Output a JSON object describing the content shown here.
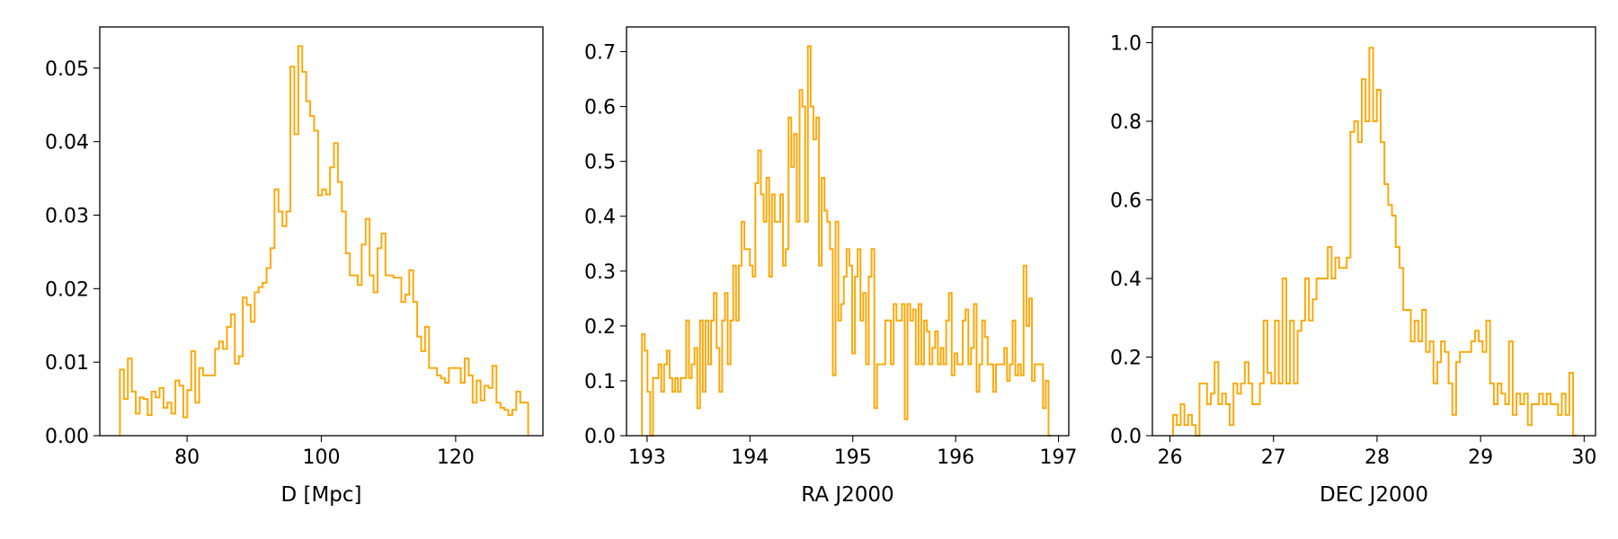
{
  "chart_data": [
    {
      "type": "histogram",
      "style": "step",
      "color": "#ffa500",
      "xlabel": "D [Mpc]",
      "ylabel": "",
      "xlim": [
        67.0,
        133.0
      ],
      "ylim": [
        0.0,
        0.0556
      ],
      "xticks": [
        80,
        100,
        120
      ],
      "xtick_labels": [
        "80",
        "100",
        "120"
      ],
      "yticks": [
        0.0,
        0.01,
        0.02,
        0.03,
        0.04,
        0.05
      ],
      "ytick_labels": [
        "0.00",
        "0.01",
        "0.02",
        "0.03",
        "0.04",
        "0.05"
      ],
      "bin_range": [
        70.0,
        130.8
      ],
      "values": [
        0.009,
        0.005,
        0.0105,
        0.006,
        0.003,
        0.0052,
        0.005,
        0.0028,
        0.006,
        0.0052,
        0.0065,
        0.0038,
        0.0045,
        0.003,
        0.0075,
        0.0068,
        0.0025,
        0.0062,
        0.0115,
        0.0045,
        0.0092,
        0.0082,
        0.0082,
        0.0082,
        0.0118,
        0.0128,
        0.0118,
        0.0148,
        0.0165,
        0.0098,
        0.0108,
        0.0188,
        0.0178,
        0.0155,
        0.0195,
        0.0202,
        0.0208,
        0.0228,
        0.0255,
        0.0335,
        0.0305,
        0.0285,
        0.0305,
        0.0502,
        0.041,
        0.053,
        0.0495,
        0.0455,
        0.0435,
        0.0415,
        0.0327,
        0.0335,
        0.0328,
        0.0365,
        0.0398,
        0.0345,
        0.0305,
        0.0248,
        0.0218,
        0.0218,
        0.0205,
        0.026,
        0.0295,
        0.0218,
        0.0195,
        0.0255,
        0.0275,
        0.0218,
        0.0218,
        0.0215,
        0.0215,
        0.0182,
        0.0192,
        0.0225,
        0.0182,
        0.0135,
        0.0115,
        0.0148,
        0.0092,
        0.0092,
        0.0082,
        0.0078,
        0.0072,
        0.0092,
        0.0092,
        0.0092,
        0.0072,
        0.0105,
        0.0082,
        0.0045,
        0.0075,
        0.0048,
        0.0068,
        0.0065,
        0.0095,
        0.0045,
        0.0038,
        0.0035,
        0.0028,
        0.0035,
        0.006,
        0.0045,
        0.0045
      ]
    },
    {
      "type": "histogram",
      "style": "step",
      "color": "#ffa500",
      "xlabel": "RA J2000",
      "ylabel": "",
      "xlim": [
        192.8,
        197.1
      ],
      "ylim": [
        0.0,
        0.745
      ],
      "xticks": [
        193,
        194,
        195,
        196,
        197
      ],
      "xtick_labels": [
        "193",
        "194",
        "195",
        "196",
        "197"
      ],
      "yticks": [
        0.0,
        0.1,
        0.2,
        0.3,
        0.4,
        0.5,
        0.6,
        0.7
      ],
      "ytick_labels": [
        "0.0",
        "0.1",
        "0.2",
        "0.3",
        "0.4",
        "0.5",
        "0.6",
        "0.7"
      ],
      "bin_range": [
        192.95,
        196.93
      ],
      "values": [
        0.185,
        0.155,
        0.08,
        0.0,
        0.105,
        0.105,
        0.13,
        0.08,
        0.13,
        0.155,
        0.105,
        0.08,
        0.105,
        0.08,
        0.105,
        0.105,
        0.21,
        0.105,
        0.13,
        0.16,
        0.05,
        0.21,
        0.08,
        0.21,
        0.13,
        0.21,
        0.26,
        0.16,
        0.08,
        0.21,
        0.26,
        0.13,
        0.21,
        0.31,
        0.21,
        0.31,
        0.39,
        0.34,
        0.34,
        0.31,
        0.29,
        0.46,
        0.52,
        0.44,
        0.39,
        0.47,
        0.29,
        0.44,
        0.39,
        0.39,
        0.44,
        0.31,
        0.34,
        0.58,
        0.49,
        0.55,
        0.39,
        0.63,
        0.6,
        0.39,
        0.71,
        0.6,
        0.54,
        0.58,
        0.31,
        0.47,
        0.41,
        0.39,
        0.34,
        0.11,
        0.39,
        0.21,
        0.24,
        0.29,
        0.34,
        0.31,
        0.15,
        0.29,
        0.34,
        0.21,
        0.26,
        0.13,
        0.29,
        0.34,
        0.05,
        0.13,
        0.13,
        0.13,
        0.21,
        0.21,
        0.13,
        0.24,
        0.21,
        0.21,
        0.24,
        0.03,
        0.24,
        0.21,
        0.23,
        0.13,
        0.24,
        0.13,
        0.21,
        0.19,
        0.13,
        0.16,
        0.19,
        0.13,
        0.16,
        0.13,
        0.21,
        0.26,
        0.11,
        0.15,
        0.13,
        0.13,
        0.21,
        0.23,
        0.13,
        0.16,
        0.24,
        0.08,
        0.13,
        0.21,
        0.18,
        0.13,
        0.13,
        0.08,
        0.13,
        0.13,
        0.13,
        0.16,
        0.1,
        0.13,
        0.21,
        0.11,
        0.13,
        0.11,
        0.31,
        0.2,
        0.25,
        0.1,
        0.13,
        0.13,
        0.13,
        0.05,
        0.1,
        0.0
      ]
    },
    {
      "type": "histogram",
      "style": "step",
      "color": "#ffa500",
      "xlabel": "DEC J2000",
      "ylabel": "",
      "xlim": [
        25.83,
        30.11
      ],
      "ylim": [
        0.0,
        1.04
      ],
      "xticks": [
        26,
        27,
        28,
        29,
        30
      ],
      "xtick_labels": [
        "26",
        "27",
        "28",
        "29",
        "30"
      ],
      "yticks": [
        0.0,
        0.2,
        0.4,
        0.6,
        0.8,
        1.0
      ],
      "ytick_labels": [
        "0.0",
        "0.2",
        "0.4",
        "0.6",
        "0.8",
        "1.0"
      ],
      "bin_range": [
        26.03,
        29.93
      ],
      "values": [
        0.053,
        0.027,
        0.08,
        0.027,
        0.053,
        0.027,
        0.0,
        0.133,
        0.133,
        0.08,
        0.107,
        0.187,
        0.08,
        0.107,
        0.08,
        0.027,
        0.133,
        0.107,
        0.133,
        0.187,
        0.133,
        0.08,
        0.08,
        0.133,
        0.293,
        0.16,
        0.133,
        0.293,
        0.133,
        0.4,
        0.133,
        0.293,
        0.133,
        0.267,
        0.293,
        0.4,
        0.293,
        0.347,
        0.4,
        0.4,
        0.4,
        0.48,
        0.4,
        0.453,
        0.427,
        0.427,
        0.453,
        0.773,
        0.8,
        0.747,
        0.907,
        0.8,
        0.987,
        0.8,
        0.88,
        0.747,
        0.64,
        0.587,
        0.56,
        0.48,
        0.427,
        0.32,
        0.32,
        0.24,
        0.293,
        0.24,
        0.32,
        0.213,
        0.24,
        0.133,
        0.187,
        0.24,
        0.213,
        0.133,
        0.053,
        0.187,
        0.213,
        0.213,
        0.213,
        0.24,
        0.267,
        0.24,
        0.213,
        0.293,
        0.133,
        0.08,
        0.133,
        0.107,
        0.08,
        0.24,
        0.053,
        0.107,
        0.08,
        0.107,
        0.027,
        0.08,
        0.08,
        0.107,
        0.08,
        0.107,
        0.08,
        0.08,
        0.053,
        0.107,
        0.053,
        0.16,
        0.0
      ]
    }
  ]
}
